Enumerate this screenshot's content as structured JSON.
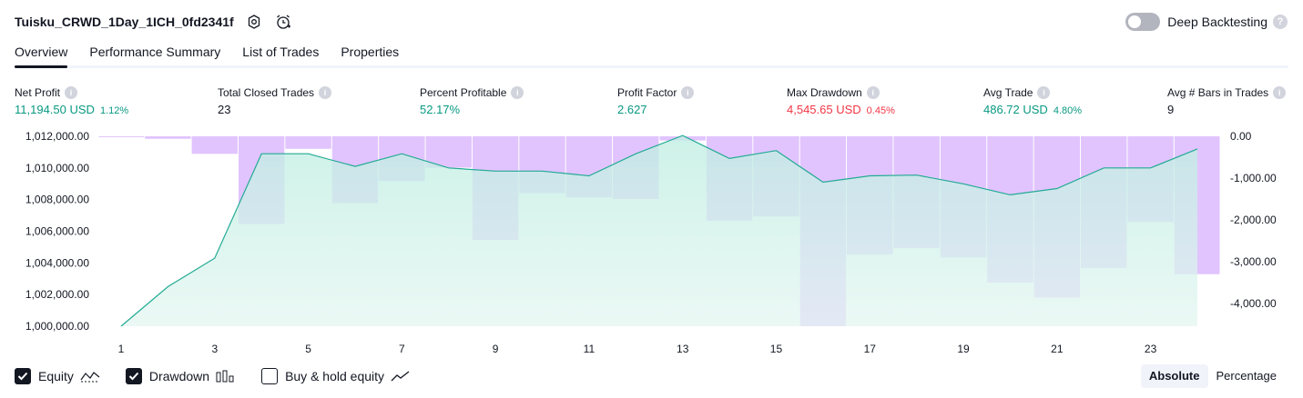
{
  "header": {
    "strategy_name": "Tuisku_CRWD_1Day_1ICH_0fd2341f",
    "deep_backtesting_label": "Deep Backtesting",
    "deep_backtesting_enabled": false,
    "icons": [
      "settings-icon",
      "alarm-add-icon",
      "help-icon"
    ]
  },
  "tabs": [
    {
      "label": "Overview",
      "active": true
    },
    {
      "label": "Performance Summary",
      "active": false
    },
    {
      "label": "List of Trades",
      "active": false
    },
    {
      "label": "Properties",
      "active": false
    }
  ],
  "metrics": [
    {
      "label": "Net Profit",
      "value": "11,194.50 USD",
      "pct": "1.12%",
      "color": "#089981"
    },
    {
      "label": "Total Closed Trades",
      "value": "23",
      "pct": "",
      "color": "#131722"
    },
    {
      "label": "Percent Profitable",
      "value": "52.17%",
      "pct": "",
      "color": "#089981"
    },
    {
      "label": "Profit Factor",
      "value": "2.627",
      "pct": "",
      "color": "#089981"
    },
    {
      "label": "Max Drawdown",
      "value": "4,545.65 USD",
      "pct": "0.45%",
      "color": "#f23645"
    },
    {
      "label": "Avg Trade",
      "value": "486.72 USD",
      "pct": "4.80%",
      "color": "#089981"
    },
    {
      "label": "Avg # Bars in Trades",
      "value": "9",
      "pct": "",
      "color": "#131722"
    }
  ],
  "chart_data": {
    "type": "area",
    "x_ticks": [
      "1",
      "3",
      "5",
      "7",
      "9",
      "11",
      "13",
      "15",
      "17",
      "19",
      "21",
      "23"
    ],
    "left_axis": {
      "ticks": [
        "1,012,000.00",
        "1,010,000.00",
        "1,008,000.00",
        "1,006,000.00",
        "1,004,000.00",
        "1,002,000.00",
        "1,000,000.00"
      ],
      "ylim": [
        1000000,
        1012000
      ]
    },
    "right_axis": {
      "ticks": [
        "0.00",
        "-1,000.00",
        "-2,000.00",
        "-3,000.00",
        "-4,000.00"
      ],
      "ylim": [
        -4545.65,
        0
      ]
    },
    "x": [
      1,
      2,
      3,
      4,
      5,
      6,
      7,
      8,
      9,
      10,
      11,
      12,
      13,
      14,
      15,
      16,
      17,
      18,
      19,
      20,
      21,
      22,
      23,
      24
    ],
    "equity": [
      1000000,
      1002500,
      1004300,
      1010900,
      1010900,
      1010100,
      1010900,
      1010000,
      1009800,
      1009800,
      1009500,
      1010900,
      1012050,
      1010600,
      1011100,
      1009100,
      1009500,
      1009550,
      1009000,
      1008300,
      1008700,
      1010000,
      1010000,
      1011200
    ],
    "drawdown": [
      -20,
      -60,
      -420,
      -2100,
      -300,
      -1600,
      -1070,
      -750,
      -2480,
      -1360,
      -1460,
      -1500,
      -100,
      -2020,
      -1920,
      -4545.65,
      -2830,
      -2680,
      -2900,
      -3500,
      -3860,
      -3150,
      -2050,
      -3300
    ],
    "series": [
      {
        "name": "Equity",
        "color": "#22ab94"
      },
      {
        "name": "Drawdown",
        "color": "#d8b4fe"
      },
      {
        "name": "Buy & hold equity",
        "color": "#131722"
      }
    ]
  },
  "legend": [
    {
      "label": "Equity",
      "checked": true
    },
    {
      "label": "Drawdown",
      "checked": true
    },
    {
      "label": "Buy & hold equity",
      "checked": false
    }
  ],
  "mode": {
    "absolute_label": "Absolute",
    "percentage_label": "Percentage",
    "selected": "Absolute"
  }
}
